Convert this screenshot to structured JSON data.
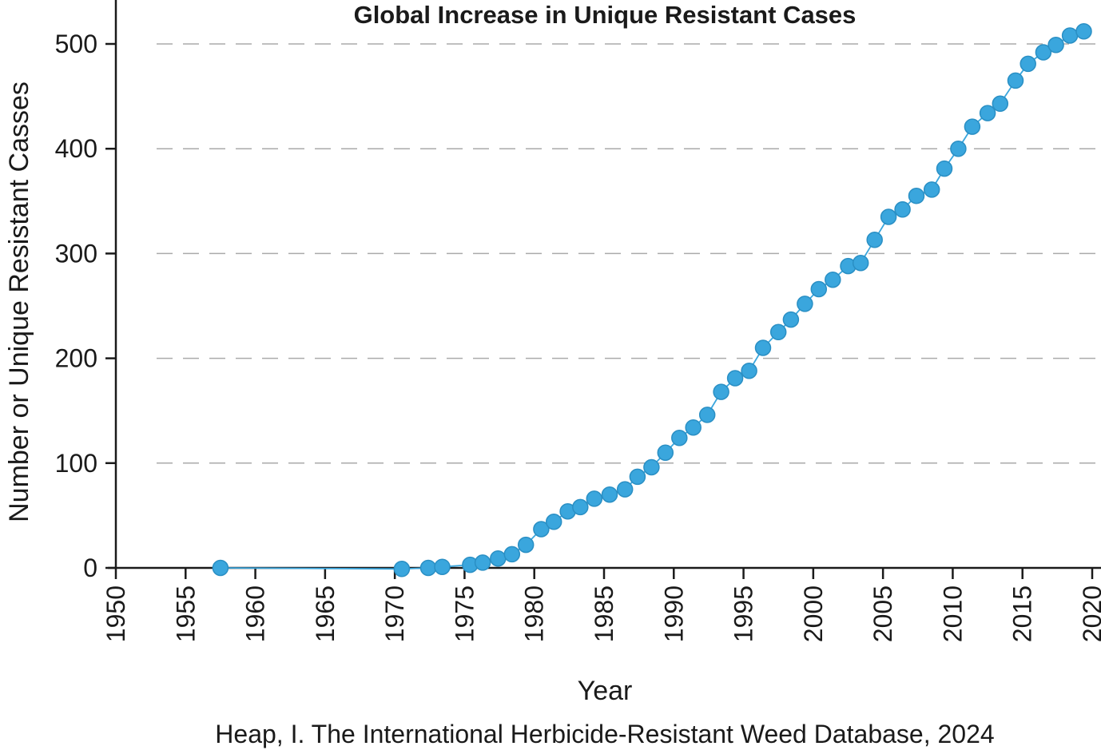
{
  "chart_data": {
    "type": "line",
    "title": "Global Increase in Unique Resistant Cases",
    "xlabel": "Year",
    "ylabel": "Number or Unique Resistant Casses",
    "source": "Heap, I. The International Herbicide-Resistant Weed Database, 2024",
    "xlim": [
      1950,
      2020
    ],
    "ylim": [
      0,
      500
    ],
    "x_ticks": [
      "1950",
      "1955",
      "1960",
      "1965",
      "1970",
      "1975",
      "1980",
      "1985",
      "1990",
      "1995",
      "2000",
      "2005",
      "2010",
      "2015",
      "2020"
    ],
    "y_ticks": [
      "0",
      "100",
      "200",
      "300",
      "400",
      "500"
    ],
    "grid": "horizontal-dashed",
    "colors": {
      "series": "#3aa6dd",
      "series_edge": "#2a8fc4",
      "axis": "#1a1a1a",
      "grid": "#aaaaaa"
    },
    "series": [
      {
        "x": [
          1957.5,
          1970.5,
          1972.4,
          1973.4,
          1975.4,
          1976.3,
          1977.4,
          1978.4,
          1979.4,
          1980.5,
          1981.4,
          1982.4,
          1983.3,
          1984.3,
          1985.4,
          1986.5,
          1987.4,
          1988.4,
          1989.4,
          1990.4,
          1991.4,
          1992.4,
          1993.4,
          1994.4,
          1995.4,
          1996.4,
          1997.5,
          1998.4,
          1999.4,
          2000.4,
          2001.4,
          2002.5,
          2003.4,
          2004.4,
          2005.4,
          2006.4,
          2007.4,
          2008.5,
          2009.4,
          2010.4,
          2011.4,
          2012.5,
          2013.4,
          2014.5,
          2015.4,
          2016.5,
          2017.4,
          2018.4,
          2019.4
        ],
        "y": [
          0,
          -1,
          0,
          1,
          3,
          5,
          9,
          13,
          22,
          37,
          44,
          54,
          58,
          66,
          70,
          75,
          87,
          96,
          110,
          124,
          134,
          146,
          168,
          181,
          188,
          210,
          225,
          237,
          252,
          266,
          275,
          288,
          291,
          313,
          335,
          342,
          355,
          361,
          381,
          400,
          421,
          434,
          443,
          465,
          481,
          492,
          499,
          508,
          512
        ]
      }
    ]
  }
}
